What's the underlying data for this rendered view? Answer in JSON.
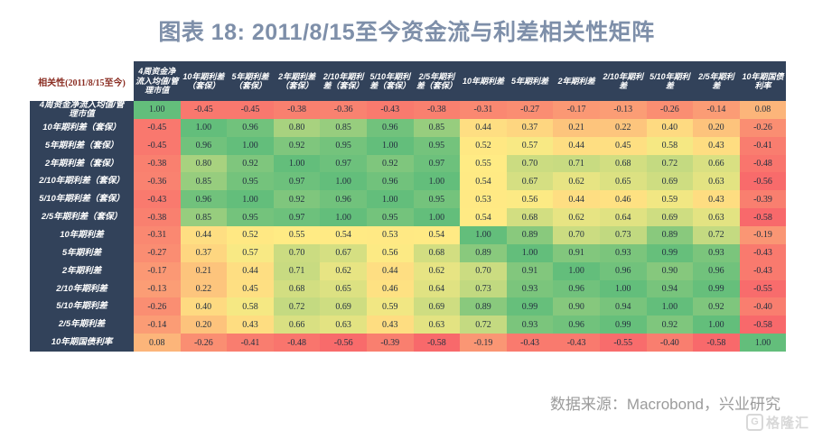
{
  "page": {
    "title": "图表 18: 2011/8/15至今资金流与利差相关性矩阵",
    "source_note": "数据来源：Macrobond，兴业研究",
    "watermark_icon_letter": "G",
    "watermark_text": "格隆汇"
  },
  "colors": {
    "title_text": "#7e8fa9",
    "header_bg": "#32425a",
    "header_text": "#ffffff",
    "corner_text": "#8b2e23",
    "cell_text": "#24303f",
    "scale_min_color": "#F8696B",
    "scale_mid_color": "#FFEB84",
    "scale_max_color": "#63BE7B",
    "source_text": "#9b9b9b",
    "watermark_text": "#d8d8d8"
  },
  "chart_data": {
    "type": "heatmap",
    "title": "图表 18: 2011/8/15至今资金流与利差相关性矩阵",
    "corner_label": "相关性(2011/8/15至今)",
    "legend_position": "none",
    "color_scale": {
      "min": -0.58,
      "mid": 0.55,
      "max": 1.0
    },
    "columns": [
      "4周资金净流入均值/管理市值",
      "10年期利差（套保）",
      "5年期利差（套保）",
      "2年期利差（套保）",
      "2/10年期利差（套保）",
      "5/10年期利差（套保）",
      "2/5年期利差（套保）",
      "10年期利差",
      "5年期利差",
      "2年期利差",
      "2/10年期利差",
      "5/10年期利差",
      "2/5年期利差",
      "10年期国债利率"
    ],
    "rows": [
      "4周资金净流入均值/管理市值",
      "10年期利差（套保）",
      "5年期利差（套保）",
      "2年期利差（套保）",
      "2/10年期利差（套保）",
      "5/10年期利差（套保）",
      "2/5年期利差（套保）",
      "10年期利差",
      "5年期利差",
      "2年期利差",
      "2/10年期利差",
      "5/10年期利差",
      "2/5年期利差",
      "10年期国债利率"
    ],
    "matrix": [
      [
        1.0,
        -0.45,
        -0.45,
        -0.38,
        -0.36,
        -0.43,
        -0.38,
        -0.31,
        -0.27,
        -0.17,
        -0.13,
        -0.26,
        -0.14,
        0.08
      ],
      [
        -0.45,
        1.0,
        0.96,
        0.8,
        0.85,
        0.96,
        0.85,
        0.44,
        0.37,
        0.21,
        0.22,
        0.4,
        0.2,
        -0.26
      ],
      [
        -0.45,
        0.96,
        1.0,
        0.92,
        0.95,
        1.0,
        0.95,
        0.52,
        0.57,
        0.44,
        0.45,
        0.58,
        0.43,
        -0.41
      ],
      [
        -0.38,
        0.8,
        0.92,
        1.0,
        0.97,
        0.92,
        0.97,
        0.55,
        0.7,
        0.71,
        0.68,
        0.72,
        0.66,
        -0.48
      ],
      [
        -0.36,
        0.85,
        0.95,
        0.97,
        1.0,
        0.96,
        1.0,
        0.54,
        0.67,
        0.62,
        0.65,
        0.69,
        0.63,
        -0.56
      ],
      [
        -0.43,
        0.96,
        1.0,
        0.92,
        0.96,
        1.0,
        0.95,
        0.53,
        0.56,
        0.44,
        0.46,
        0.59,
        0.43,
        -0.39
      ],
      [
        -0.38,
        0.85,
        0.95,
        0.97,
        1.0,
        0.95,
        1.0,
        0.54,
        0.68,
        0.62,
        0.64,
        0.69,
        0.63,
        -0.58
      ],
      [
        -0.31,
        0.44,
        0.52,
        0.55,
        0.54,
        0.53,
        0.54,
        1.0,
        0.89,
        0.7,
        0.73,
        0.89,
        0.72,
        -0.19
      ],
      [
        -0.27,
        0.37,
        0.57,
        0.7,
        0.67,
        0.56,
        0.68,
        0.89,
        1.0,
        0.91,
        0.93,
        0.99,
        0.93,
        -0.43
      ],
      [
        -0.17,
        0.21,
        0.44,
        0.71,
        0.62,
        0.44,
        0.62,
        0.7,
        0.91,
        1.0,
        0.96,
        0.9,
        0.96,
        -0.43
      ],
      [
        -0.13,
        0.22,
        0.45,
        0.68,
        0.65,
        0.46,
        0.64,
        0.73,
        0.93,
        0.96,
        1.0,
        0.94,
        0.99,
        -0.55
      ],
      [
        -0.26,
        0.4,
        0.58,
        0.72,
        0.69,
        0.59,
        0.69,
        0.89,
        0.99,
        0.9,
        0.94,
        1.0,
        0.92,
        -0.4
      ],
      [
        -0.14,
        0.2,
        0.43,
        0.66,
        0.63,
        0.43,
        0.63,
        0.72,
        0.93,
        0.96,
        0.99,
        0.92,
        1.0,
        -0.58
      ],
      [
        0.08,
        -0.26,
        -0.41,
        -0.48,
        -0.56,
        -0.39,
        -0.58,
        -0.19,
        -0.43,
        -0.43,
        -0.55,
        -0.4,
        -0.58,
        1.0
      ]
    ]
  }
}
